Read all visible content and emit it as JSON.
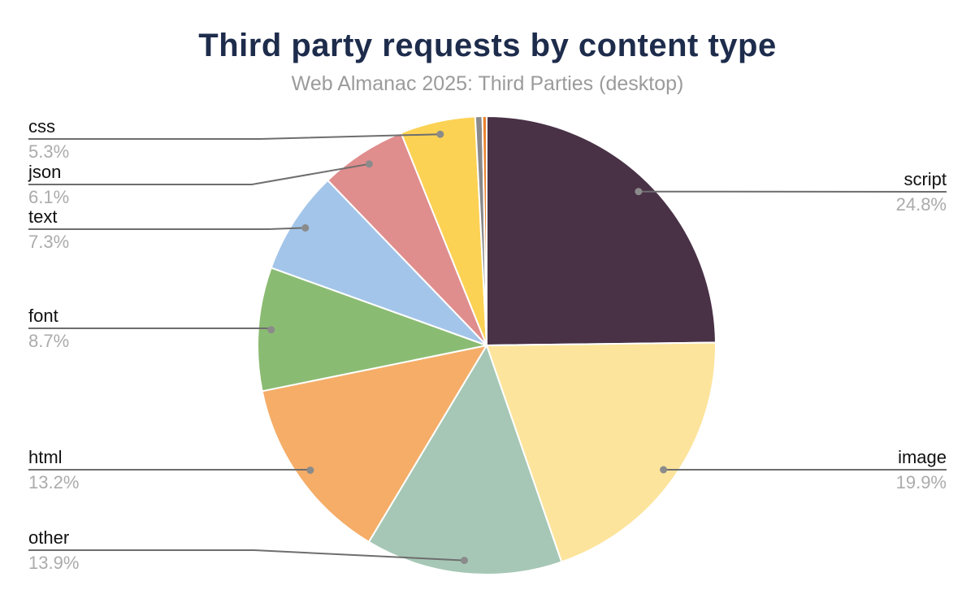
{
  "chart_data": {
    "type": "pie",
    "title": "Third party requests by content type",
    "subtitle": "Web Almanac 2025: Third Parties (desktop)",
    "legend_position": "none",
    "direction": "clockwise",
    "start_angle_deg": 0,
    "colors": {
      "title_text": "#1e2c4c",
      "subtitle_text": "#9b9b9b",
      "label_text": "#111111",
      "pct_text": "#ababab",
      "leader_line": "#6e6e6e",
      "leader_dot": "#8b8b8b",
      "slice_border": "#ffffff",
      "background": "#ffffff"
    },
    "slices": [
      {
        "label": "script",
        "value": 24.8,
        "pct_label": "24.8%",
        "color": "#493146",
        "labeled": true
      },
      {
        "label": "image",
        "value": 19.9,
        "pct_label": "19.9%",
        "color": "#fce49c",
        "labeled": true
      },
      {
        "label": "other",
        "value": 13.9,
        "pct_label": "13.9%",
        "color": "#a6c7b5",
        "labeled": true
      },
      {
        "label": "html",
        "value": 13.2,
        "pct_label": "13.2%",
        "color": "#f5ad68",
        "labeled": true
      },
      {
        "label": "font",
        "value": 8.7,
        "pct_label": "8.7%",
        "color": "#8abb72",
        "labeled": true
      },
      {
        "label": "text",
        "value": 7.3,
        "pct_label": "7.3%",
        "color": "#a3c5e9",
        "labeled": true
      },
      {
        "label": "json",
        "value": 6.1,
        "pct_label": "6.1%",
        "color": "#e08d8d",
        "labeled": true
      },
      {
        "label": "css",
        "value": 5.3,
        "pct_label": "5.3%",
        "color": "#fcd254",
        "labeled": true
      },
      {
        "label": "",
        "value": 0.5,
        "pct_label": "",
        "color": "#8a8a8a",
        "labeled": false
      },
      {
        "label": "",
        "value": 0.3,
        "pct_label": "",
        "color": "#e8822d",
        "labeled": false
      }
    ]
  }
}
